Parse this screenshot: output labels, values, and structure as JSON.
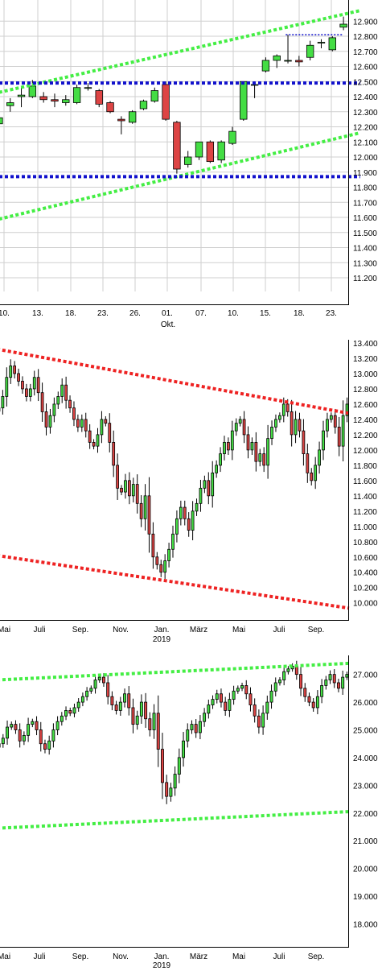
{
  "chart_data": [
    {
      "type": "candlestick",
      "id": "daily",
      "y_ticks": [
        "12.900",
        "12.800",
        "12.700",
        "12.600",
        "12.500",
        "12.400",
        "12.300",
        "12.200",
        "12.100",
        "12.000",
        "11.900",
        "11.800",
        "11.700",
        "11.600",
        "11.500",
        "11.400",
        "11.300",
        "11.200"
      ],
      "ylim": [
        11.12,
        12.96
      ],
      "x_labels": [
        "10.",
        "13.",
        "18.",
        "23.",
        "26.",
        "01.",
        "07.",
        "10.",
        "15.",
        "18.",
        "23."
      ],
      "x_sublabel": "Okt.",
      "grid": true,
      "up_color": "#44dd44",
      "down_color": "#dd4444",
      "candles": [
        {
          "o": 12.22,
          "h": 12.28,
          "l": 12.17,
          "c": 12.26
        },
        {
          "o": 12.34,
          "h": 12.39,
          "l": 12.3,
          "c": 12.36
        },
        {
          "o": 12.4,
          "h": 12.46,
          "l": 12.33,
          "c": 12.41
        },
        {
          "o": 12.4,
          "h": 12.51,
          "l": 12.39,
          "c": 12.47
        },
        {
          "o": 12.4,
          "h": 12.43,
          "l": 12.36,
          "c": 12.38
        },
        {
          "o": 12.38,
          "h": 12.42,
          "l": 12.33,
          "c": 12.37
        },
        {
          "o": 12.36,
          "h": 12.41,
          "l": 12.34,
          "c": 12.38
        },
        {
          "o": 12.36,
          "h": 12.48,
          "l": 12.35,
          "c": 12.46
        },
        {
          "o": 12.46,
          "h": 12.49,
          "l": 12.44,
          "c": 12.46
        },
        {
          "o": 12.44,
          "h": 12.45,
          "l": 12.33,
          "c": 12.35
        },
        {
          "o": 12.36,
          "h": 12.37,
          "l": 12.29,
          "c": 12.3
        },
        {
          "o": 12.25,
          "h": 12.27,
          "l": 12.15,
          "c": 12.24
        },
        {
          "o": 12.23,
          "h": 12.31,
          "l": 12.22,
          "c": 12.3
        },
        {
          "o": 12.32,
          "h": 12.38,
          "l": 12.31,
          "c": 12.37
        },
        {
          "o": 12.37,
          "h": 12.46,
          "l": 12.36,
          "c": 12.44
        },
        {
          "o": 12.48,
          "h": 12.5,
          "l": 12.24,
          "c": 12.25
        },
        {
          "o": 12.23,
          "h": 12.24,
          "l": 11.89,
          "c": 11.92
        },
        {
          "o": 11.95,
          "h": 12.04,
          "l": 11.93,
          "c": 12.0
        },
        {
          "o": 12.0,
          "h": 12.1,
          "l": 11.98,
          "c": 12.1
        },
        {
          "o": 12.1,
          "h": 12.11,
          "l": 11.96,
          "c": 11.97
        },
        {
          "o": 11.98,
          "h": 12.11,
          "l": 11.96,
          "c": 12.1
        },
        {
          "o": 12.09,
          "h": 12.2,
          "l": 12.08,
          "c": 12.17
        },
        {
          "o": 12.25,
          "h": 12.5,
          "l": 12.24,
          "c": 12.5
        },
        {
          "o": 12.48,
          "h": 12.5,
          "l": 12.39,
          "c": 12.48
        },
        {
          "o": 12.57,
          "h": 12.66,
          "l": 12.56,
          "c": 12.64
        },
        {
          "o": 12.64,
          "h": 12.68,
          "l": 12.59,
          "c": 12.67
        },
        {
          "o": 12.64,
          "h": 12.81,
          "l": 12.62,
          "c": 12.64
        },
        {
          "o": 12.64,
          "h": 12.67,
          "l": 12.6,
          "c": 12.63
        },
        {
          "o": 12.66,
          "h": 12.77,
          "l": 12.64,
          "c": 12.74
        },
        {
          "o": 12.76,
          "h": 12.78,
          "l": 12.72,
          "c": 12.76
        },
        {
          "o": 12.71,
          "h": 12.8,
          "l": 12.7,
          "c": 12.79
        },
        {
          "o": 12.86,
          "h": 12.93,
          "l": 12.84,
          "c": 12.88
        }
      ],
      "trend_lines": [
        {
          "style": "green-dotted",
          "points": [
            [
              0,
              12.42
            ],
            [
              33,
              12.97
            ]
          ]
        },
        {
          "style": "green-dotted",
          "points": [
            [
              0,
              11.58
            ],
            [
              33,
              12.16
            ]
          ]
        },
        {
          "style": "blue-dotted",
          "points": [
            [
              0,
              12.49
            ],
            [
              33,
              12.49
            ]
          ]
        },
        {
          "style": "blue-dotted",
          "points": [
            [
              0,
              11.87
            ],
            [
              33,
              11.87
            ]
          ]
        },
        {
          "style": "blue-dotted-thin",
          "points": [
            [
              26.3,
              12.81
            ],
            [
              31.5,
              12.81
            ]
          ]
        }
      ]
    },
    {
      "type": "candlestick",
      "id": "weekly",
      "y_ticks": [
        "13.400",
        "13.200",
        "13.000",
        "12.800",
        "12.600",
        "12.400",
        "12.200",
        "12.000",
        "11.800",
        "11.600",
        "11.400",
        "11.200",
        "11.000",
        "10.800",
        "10.600",
        "10.400",
        "10.200",
        "10.000"
      ],
      "ylim": [
        9.86,
        13.4
      ],
      "x_labels": [
        "Mai",
        "Juli",
        "Sep.",
        "Nov.",
        "Jan.",
        "März",
        "Mai",
        "Juli",
        "Sep."
      ],
      "x_sublabel": "2019",
      "grid": false,
      "up_color": "#44dd44",
      "down_color": "#dd4444",
      "series_close": [
        12.55,
        12.7,
        12.95,
        13.1,
        13.0,
        12.9,
        12.8,
        12.7,
        12.8,
        12.95,
        12.75,
        12.5,
        12.3,
        12.45,
        12.6,
        12.7,
        12.85,
        12.65,
        12.55,
        12.4,
        12.3,
        12.4,
        12.25,
        12.1,
        12.05,
        12.2,
        12.4,
        12.35,
        12.1,
        11.8,
        11.5,
        11.45,
        11.6,
        11.4,
        11.55,
        11.3,
        11.1,
        11.4,
        10.9,
        10.6,
        10.5,
        10.4,
        10.55,
        10.7,
        10.9,
        11.1,
        11.25,
        11.1,
        10.95,
        11.2,
        11.3,
        11.5,
        11.6,
        11.4,
        11.7,
        11.8,
        11.95,
        12.1,
        12.0,
        12.25,
        12.35,
        12.4,
        12.2,
        12.0,
        12.1,
        11.85,
        11.95,
        11.8,
        12.15,
        12.3,
        12.4,
        12.45,
        12.6,
        12.5,
        12.2,
        12.4,
        12.25,
        11.95,
        11.7,
        11.6,
        11.8,
        12.0,
        12.25,
        12.4,
        12.45,
        12.3,
        12.05,
        12.45,
        12.6
      ],
      "trend_lines": [
        {
          "style": "red-dotted",
          "points": [
            [
              0,
              13.32
            ],
            [
              89,
              12.48
            ]
          ]
        },
        {
          "style": "red-dotted",
          "points": [
            [
              0,
              10.62
            ],
            [
              89,
              9.93
            ]
          ]
        }
      ]
    },
    {
      "type": "candlestick",
      "id": "weekly-log",
      "y_ticks": [
        "27.000",
        "26.000",
        "25.000",
        "24.000",
        "23.000",
        "22.000",
        "21.000",
        "20.000",
        "19.000",
        "18.000"
      ],
      "ylim": [
        17.2,
        27.6
      ],
      "x_labels": [
        "Mai",
        "Juli",
        "Sep.",
        "Nov.",
        "Jan.",
        "März",
        "Mai",
        "Juli",
        "Sep."
      ],
      "x_sublabel": "2019",
      "grid": false,
      "up_color": "#44dd44",
      "down_color": "#dd4444",
      "series_close": [
        24.5,
        24.7,
        25.1,
        25.2,
        25.0,
        24.6,
        24.8,
        25.2,
        25.3,
        25.0,
        24.5,
        24.3,
        24.6,
        25.0,
        25.3,
        25.5,
        25.7,
        25.6,
        25.8,
        26.0,
        26.2,
        26.4,
        26.5,
        26.8,
        26.9,
        26.7,
        26.2,
        25.9,
        25.7,
        26.0,
        26.3,
        25.8,
        25.2,
        25.5,
        26.0,
        25.4,
        25.0,
        25.6,
        24.3,
        23.1,
        22.6,
        22.9,
        23.4,
        24.0,
        24.6,
        25.0,
        25.2,
        24.9,
        25.3,
        25.6,
        25.9,
        26.1,
        26.3,
        26.0,
        25.7,
        26.1,
        26.4,
        26.5,
        26.6,
        26.3,
        25.9,
        25.5,
        25.1,
        25.6,
        26.0,
        26.4,
        26.7,
        26.8,
        27.1,
        27.2,
        27.3,
        27.0,
        26.5,
        26.2,
        26.0,
        25.8,
        26.2,
        26.6,
        26.8,
        27.0,
        26.7,
        26.5,
        26.9,
        27.0
      ],
      "trend_lines": [
        {
          "style": "green-dotted",
          "points": [
            [
              0,
              26.8
            ],
            [
              84,
              27.4
            ]
          ]
        },
        {
          "style": "green-dotted",
          "points": [
            [
              0,
              21.45
            ],
            [
              84,
              22.05
            ]
          ]
        }
      ]
    }
  ]
}
